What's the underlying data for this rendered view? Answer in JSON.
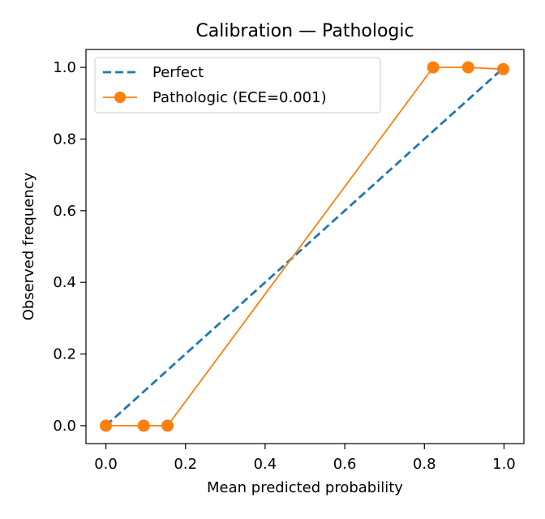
{
  "chart_data": {
    "type": "line",
    "title": "Calibration — Pathologic",
    "xlabel": "Mean predicted probability",
    "ylabel": "Observed frequency",
    "xlim": [
      -0.05,
      1.05
    ],
    "ylim": [
      -0.05,
      1.05
    ],
    "xticks": [
      0.0,
      0.2,
      0.4,
      0.6,
      0.8,
      1.0
    ],
    "xtick_labels": [
      "0.0",
      "0.2",
      "0.4",
      "0.6",
      "0.8",
      "1.0"
    ],
    "yticks": [
      0.0,
      0.2,
      0.4,
      0.6,
      0.8,
      1.0
    ],
    "ytick_labels": [
      "0.0",
      "0.2",
      "0.4",
      "0.6",
      "0.8",
      "1.0"
    ],
    "grid": false,
    "legend_position": "upper-left",
    "series": [
      {
        "name": "Perfect",
        "style": "dashed",
        "marker": "none",
        "color": "#1f77b4",
        "x": [
          0.0,
          1.0
        ],
        "y": [
          0.0,
          1.0
        ]
      },
      {
        "name": "Pathologic  (ECE=0.001)",
        "style": "solid",
        "marker": "circle",
        "color": "#ff7f0e",
        "x": [
          0.0,
          0.095,
          0.155,
          0.822,
          0.91,
          0.998
        ],
        "y": [
          0.0,
          0.0,
          0.0,
          1.0,
          1.0,
          0.995
        ]
      }
    ]
  }
}
